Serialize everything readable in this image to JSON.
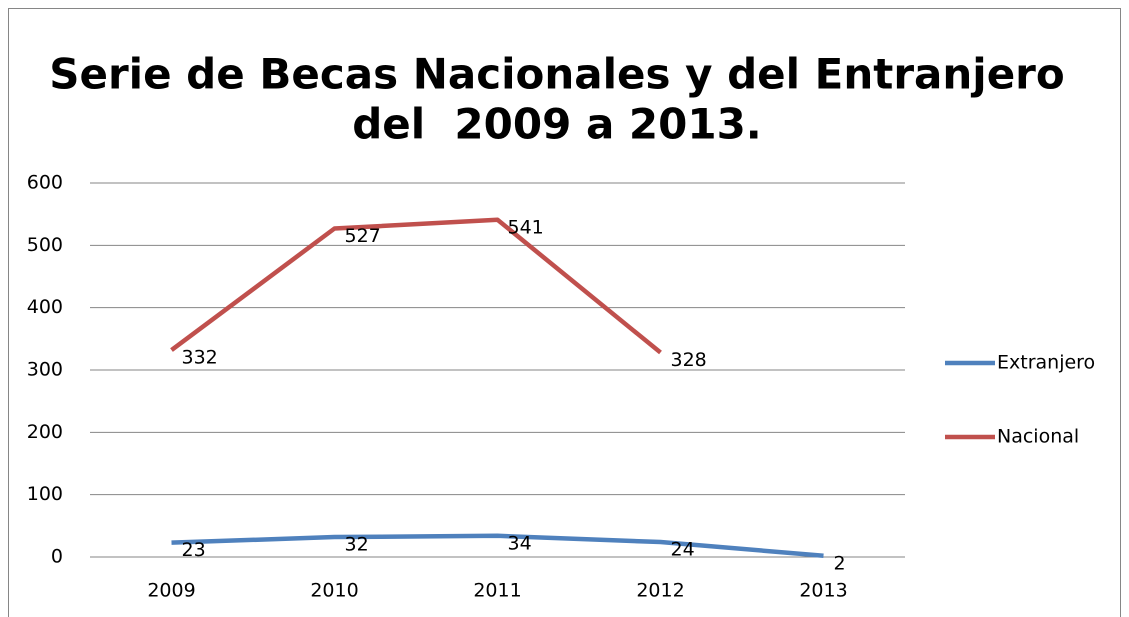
{
  "chart_data": {
    "type": "line",
    "title": [
      "Serie de Becas Nacionales y del Entranjero",
      "del  2009 a 2013."
    ],
    "categories": [
      "2009",
      "2010",
      "2011",
      "2012",
      "2013"
    ],
    "series": [
      {
        "name": "Extranjero",
        "color": "#4f81bd",
        "values": [
          23,
          32,
          34,
          24,
          2
        ]
      },
      {
        "name": "Nacional",
        "color": "#c0504d",
        "values": [
          332,
          527,
          541,
          328,
          null
        ]
      }
    ],
    "ylim": [
      0,
      600
    ],
    "yticks": [
      0,
      100,
      200,
      300,
      400,
      500,
      600
    ],
    "grid": true,
    "legend": "right"
  }
}
